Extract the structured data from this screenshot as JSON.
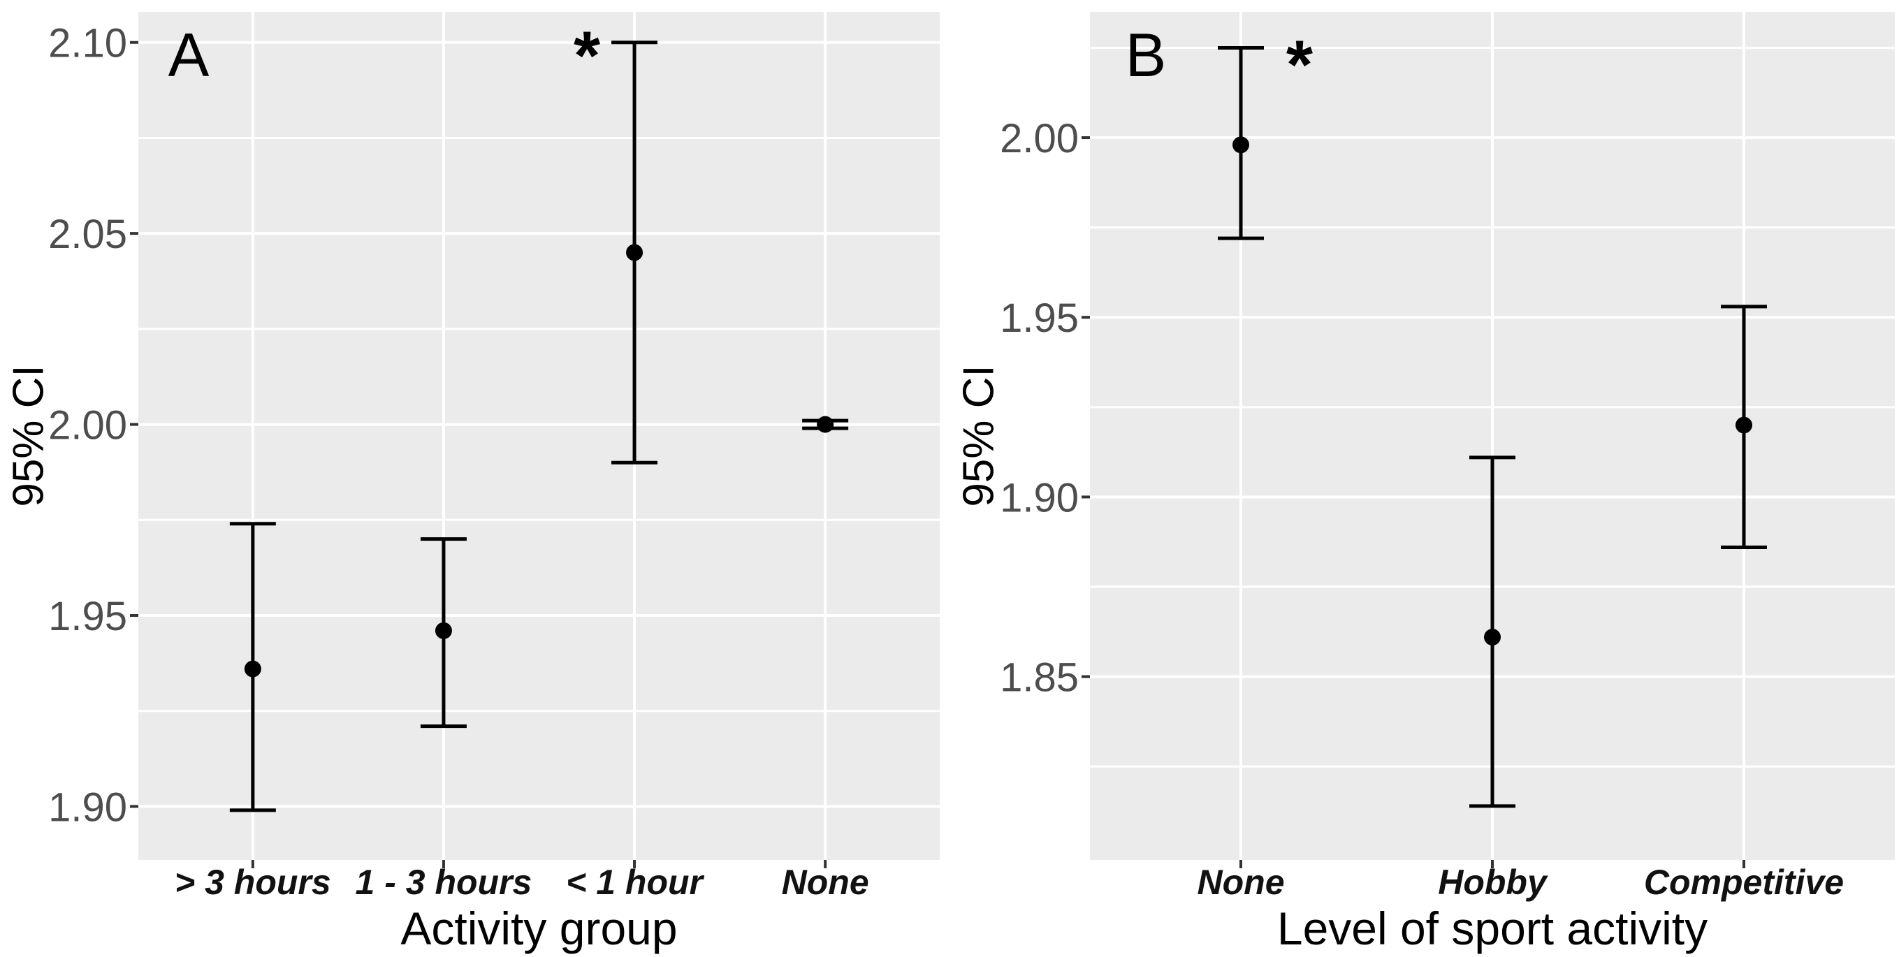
{
  "figure": {
    "background": "#ffffff",
    "panel_background": "#ebebeb",
    "gridline_color": "#ffffff",
    "errorbar_color": "#000000",
    "tick_label_color": "#4d4d4d",
    "tick_mark_color": "#333333"
  },
  "chart_data": [
    {
      "type": "scatter",
      "subtype": "point-with-95ci-errorbars",
      "panel_label": "A",
      "xlabel": "Activity group",
      "ylabel": "95% CI",
      "categories": [
        "> 3 hours",
        "1 - 3 hours",
        "< 1 hour",
        "None"
      ],
      "series": [
        {
          "name": "estimate",
          "values": [
            1.936,
            1.946,
            2.045,
            2.0
          ],
          "ci_low": [
            1.899,
            1.921,
            1.99,
            1.999
          ],
          "ci_high": [
            1.974,
            1.97,
            2.1,
            2.001
          ]
        }
      ],
      "significance": {
        "symbol": "*",
        "category": "< 1 hour"
      },
      "yticks": {
        "values": [
          2.1,
          2.05,
          2.0,
          1.95,
          1.9
        ],
        "labels": [
          "2.10",
          "2.05",
          "2.00",
          "1.95",
          "1.90"
        ]
      },
      "ylim": [
        1.886,
        2.108
      ],
      "grid": "major+minor horizontal, major vertical at categories",
      "legend": "none"
    },
    {
      "type": "scatter",
      "subtype": "point-with-95ci-errorbars",
      "panel_label": "B",
      "xlabel": "Level of sport activity",
      "ylabel": "95% CI",
      "categories": [
        "None",
        "Hobby",
        "Competitive"
      ],
      "series": [
        {
          "name": "estimate",
          "values": [
            1.998,
            1.861,
            1.92
          ],
          "ci_low": [
            1.972,
            1.814,
            1.886
          ],
          "ci_high": [
            2.025,
            1.911,
            1.953
          ]
        }
      ],
      "significance": {
        "symbol": "*",
        "category": "None"
      },
      "yticks": {
        "values": [
          2.0,
          1.95,
          1.9,
          1.85
        ],
        "labels": [
          "2.00",
          "1.95",
          "1.90",
          "1.85"
        ]
      },
      "ylim": [
        1.799,
        2.035
      ],
      "grid": "major+minor horizontal, major vertical at categories",
      "legend": "none"
    }
  ]
}
